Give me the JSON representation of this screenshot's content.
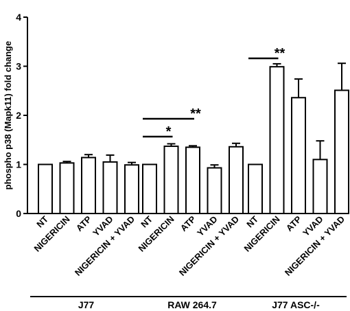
{
  "chart_data": {
    "type": "bar",
    "title": "",
    "xlabel": "",
    "ylabel": "phospho p38 (Mapk11) fold change",
    "ylim": [
      0,
      4
    ],
    "yticks": [
      0,
      1,
      2,
      3,
      4
    ],
    "grid": false,
    "groups": [
      {
        "name": "J77",
        "categories": [
          "NT",
          "NIGERICIN",
          "ATP",
          "YVAD",
          "NIGERICIN + YVAD"
        ],
        "values": [
          1.0,
          1.03,
          1.14,
          1.05,
          0.99
        ],
        "errors": [
          0.0,
          0.03,
          0.06,
          0.14,
          0.05
        ]
      },
      {
        "name": "RAW 264.7",
        "categories": [
          "NT",
          "NIGERICIN",
          "ATP",
          "YVAD",
          "NIGERICIN + YVAD"
        ],
        "values": [
          1.0,
          1.37,
          1.35,
          0.93,
          1.36
        ],
        "errors": [
          0.0,
          0.05,
          0.03,
          0.06,
          0.07
        ]
      },
      {
        "name": "J77 ASC-/-",
        "categories": [
          "NT",
          "NIGERICIN",
          "ATP",
          "YVAD",
          "NIGERICIN + YVAD"
        ],
        "values": [
          1.0,
          2.99,
          2.36,
          1.1,
          2.51
        ],
        "errors": [
          0.0,
          0.06,
          0.38,
          0.38,
          0.55
        ]
      }
    ],
    "significance": [
      {
        "group": 1,
        "from_bar": 0,
        "to_bar": 1,
        "label": "*"
      },
      {
        "group": 1,
        "from_bar": 0,
        "to_bar": 2,
        "label": "**"
      },
      {
        "group": 2,
        "from_bar": 0,
        "to_bar": 1,
        "label": "**"
      }
    ]
  }
}
